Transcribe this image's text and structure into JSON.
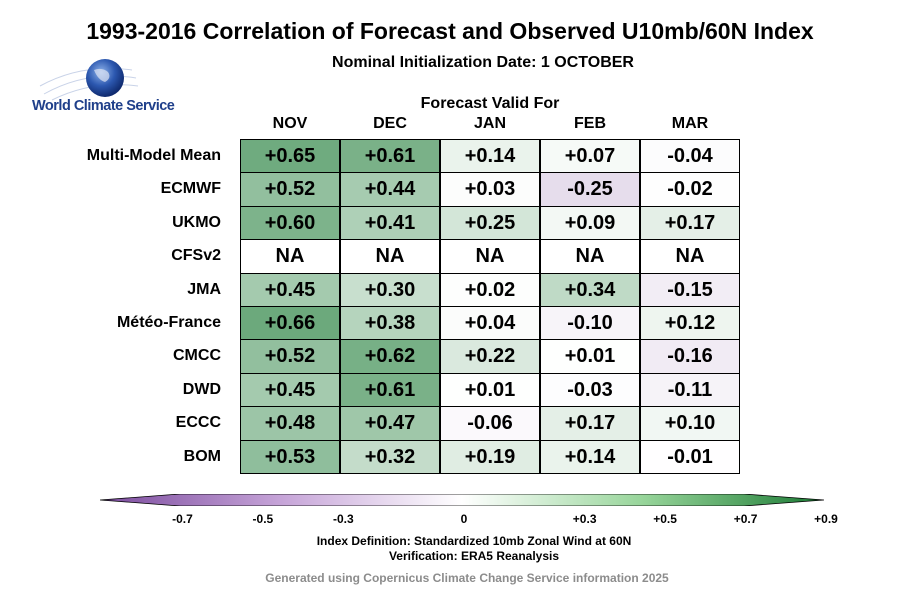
{
  "chart_data": {
    "type": "heatmap",
    "title": "1993-2016 Correlation of Forecast and Observed U10mb/60N Index",
    "subtitle": "Nominal Initialization Date: 1 OCTOBER",
    "grid_title": "Forecast Valid For",
    "columns": [
      "NOV",
      "DEC",
      "JAN",
      "FEB",
      "MAR"
    ],
    "rows": [
      "Multi-Model Mean",
      "ECMWF",
      "UKMO",
      "CFSv2",
      "JMA",
      "Météo-France",
      "CMCC",
      "DWD",
      "ECCC",
      "BOM"
    ],
    "values": [
      [
        0.65,
        0.61,
        0.14,
        0.07,
        -0.04
      ],
      [
        0.52,
        0.44,
        0.03,
        -0.25,
        -0.02
      ],
      [
        0.6,
        0.41,
        0.25,
        0.09,
        0.17
      ],
      [
        null,
        null,
        null,
        null,
        null
      ],
      [
        0.45,
        0.3,
        0.02,
        0.34,
        -0.15
      ],
      [
        0.66,
        0.38,
        0.04,
        -0.1,
        0.12
      ],
      [
        0.52,
        0.62,
        0.22,
        0.01,
        -0.16
      ],
      [
        0.45,
        0.61,
        0.01,
        -0.03,
        -0.11
      ],
      [
        0.48,
        0.47,
        -0.06,
        0.17,
        0.1
      ],
      [
        0.53,
        0.32,
        0.19,
        0.14,
        -0.01
      ]
    ],
    "labels": [
      [
        "+0.65",
        "+0.61",
        "+0.14",
        "+0.07",
        "-0.04"
      ],
      [
        "+0.52",
        "+0.44",
        "+0.03",
        "-0.25",
        "-0.02"
      ],
      [
        "+0.60",
        "+0.41",
        "+0.25",
        "+0.09",
        "+0.17"
      ],
      [
        "NA",
        "NA",
        "NA",
        "NA",
        "NA"
      ],
      [
        "+0.45",
        "+0.30",
        "+0.02",
        "+0.34",
        "-0.15"
      ],
      [
        "+0.66",
        "+0.38",
        "+0.04",
        "-0.10",
        "+0.12"
      ],
      [
        "+0.52",
        "+0.62",
        "+0.22",
        "+0.01",
        "-0.16"
      ],
      [
        "+0.45",
        "+0.61",
        "+0.01",
        "-0.03",
        "-0.11"
      ],
      [
        "+0.48",
        "+0.47",
        "-0.06",
        "+0.17",
        "+0.10"
      ],
      [
        "+0.53",
        "+0.32",
        "+0.19",
        "+0.14",
        "-0.01"
      ]
    ],
    "colorbar": {
      "range": [
        -0.9,
        0.9
      ],
      "ticks": [
        -0.7,
        -0.5,
        -0.3,
        0,
        0.3,
        0.5,
        0.7,
        0.9
      ],
      "tick_labels": [
        "-0.7",
        "-0.5",
        "-0.3",
        "0",
        "+0.3",
        "+0.5",
        "+0.7",
        "+0.9"
      ],
      "negative_color": "#7b4b9e",
      "neutral_color": "#ffffff",
      "positive_color": "#1b7a34"
    }
  },
  "logo_text": "World Climate Service",
  "index_definition": "Index Definition: Standardized 10mb Zonal Wind at 60N",
  "verification": "Verification: ERA5 Reanalysis",
  "credit": "Generated using Copernicus Climate Change Service information 2025"
}
